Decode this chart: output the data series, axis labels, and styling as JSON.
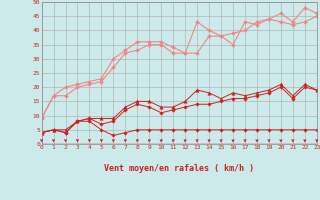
{
  "background_color": "#cceaea",
  "grid_color": "#aaaaaa",
  "xlabel": "Vent moyen/en rafales ( km/h )",
  "xlim": [
    0,
    23
  ],
  "ylim": [
    0,
    50
  ],
  "yticks": [
    0,
    5,
    10,
    15,
    20,
    25,
    30,
    35,
    40,
    45,
    50
  ],
  "xticks": [
    0,
    1,
    2,
    3,
    4,
    5,
    6,
    7,
    8,
    9,
    10,
    11,
    12,
    13,
    14,
    15,
    16,
    17,
    18,
    19,
    20,
    21,
    22,
    23
  ],
  "x": [
    0,
    1,
    2,
    3,
    4,
    5,
    6,
    7,
    8,
    9,
    10,
    11,
    12,
    13,
    14,
    15,
    16,
    17,
    18,
    19,
    20,
    21,
    22,
    23
  ],
  "line1": [
    4,
    5,
    4,
    8,
    8,
    5,
    3,
    4,
    5,
    5,
    5,
    5,
    5,
    5,
    5,
    5,
    5,
    5,
    5,
    5,
    5,
    5,
    5,
    5
  ],
  "line2": [
    4,
    5,
    4,
    8,
    9,
    7,
    8,
    12,
    14,
    13,
    11,
    12,
    13,
    14,
    14,
    15,
    16,
    16,
    17,
    18,
    20,
    16,
    20,
    19
  ],
  "line3": [
    4,
    5,
    5,
    8,
    9,
    9,
    9,
    13,
    15,
    15,
    13,
    13,
    15,
    19,
    18,
    16,
    18,
    17,
    18,
    19,
    21,
    17,
    21,
    19
  ],
  "line4": [
    9,
    17,
    17,
    20,
    21,
    22,
    27,
    32,
    33,
    35,
    35,
    32,
    32,
    32,
    38,
    38,
    39,
    40,
    43,
    44,
    43,
    42,
    43,
    45
  ],
  "line5": [
    9,
    17,
    20,
    21,
    22,
    23,
    30,
    33,
    36,
    36,
    36,
    34,
    32,
    43,
    40,
    38,
    35,
    43,
    42,
    44,
    46,
    43,
    48,
    46
  ],
  "color_dark": "#cc2222",
  "color_light": "#ee8888"
}
